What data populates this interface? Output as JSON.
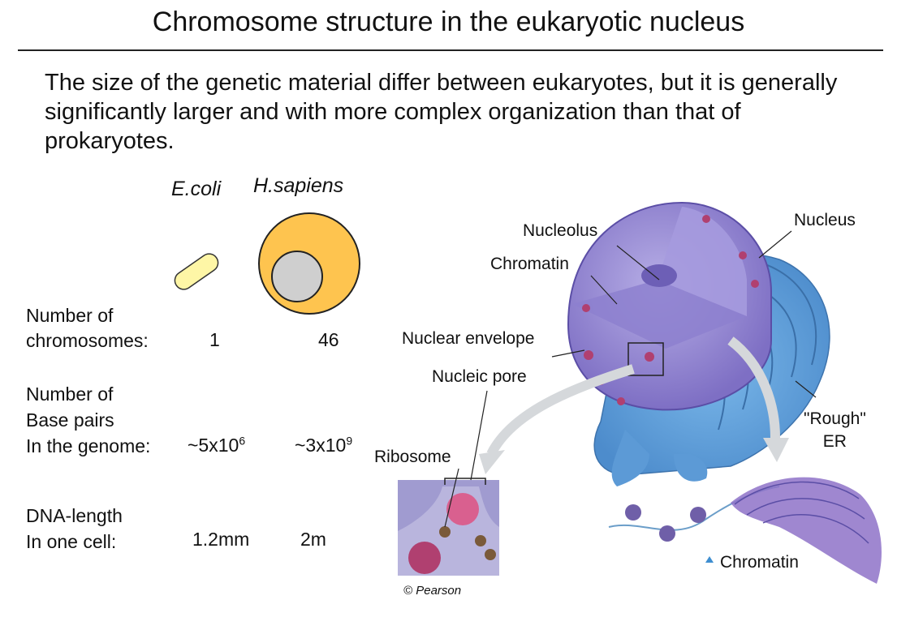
{
  "title": "Chromosome structure in the eukaryotic nucleus",
  "intro": "The size of the genetic material differ between eukaryotes, but it is generally significantly larger and with more complex organization than that of prokaryotes.",
  "organisms": {
    "ecoli": "E.coli",
    "hsapiens": "H.sapiens"
  },
  "rows": [
    {
      "label_lines": [
        "Number of",
        "chromosomes:"
      ],
      "ecoli": "1",
      "hsapiens": "46"
    },
    {
      "label_lines": [
        "Number of",
        "Base pairs",
        "In the genome:"
      ],
      "ecoli_base": "~5x10",
      "ecoli_exp": "6",
      "hsapiens_base": "~3x10",
      "hsapiens_exp": "9"
    },
    {
      "label_lines": [
        "DNA-length",
        "In one cell:"
      ],
      "ecoli": "1.2mm",
      "hsapiens": "2m"
    }
  ],
  "diagram_labels": {
    "nucleolus": "Nucleolus",
    "nucleus": "Nucleus",
    "chromatin_top": "Chromatin",
    "nuclear_envelope": "Nuclear envelope",
    "nucleic_pore": "Nucleic pore",
    "rough_er_1": "\"Rough\"",
    "rough_er_2": "ER",
    "ribosome": "Ribosome",
    "chromatin_bottom": "Chromatin",
    "copyright": "© Pearson"
  },
  "colors": {
    "ecoli_fill": "#fef6a6",
    "hsapiens_cell": "#fec44f",
    "hsapiens_nucleus": "#cfcfcf",
    "nucleus_fill": "#9c8fd6",
    "er_fill": "#6aa8e0",
    "arrow": "#d5d8db",
    "ribosome": "#b04070"
  }
}
